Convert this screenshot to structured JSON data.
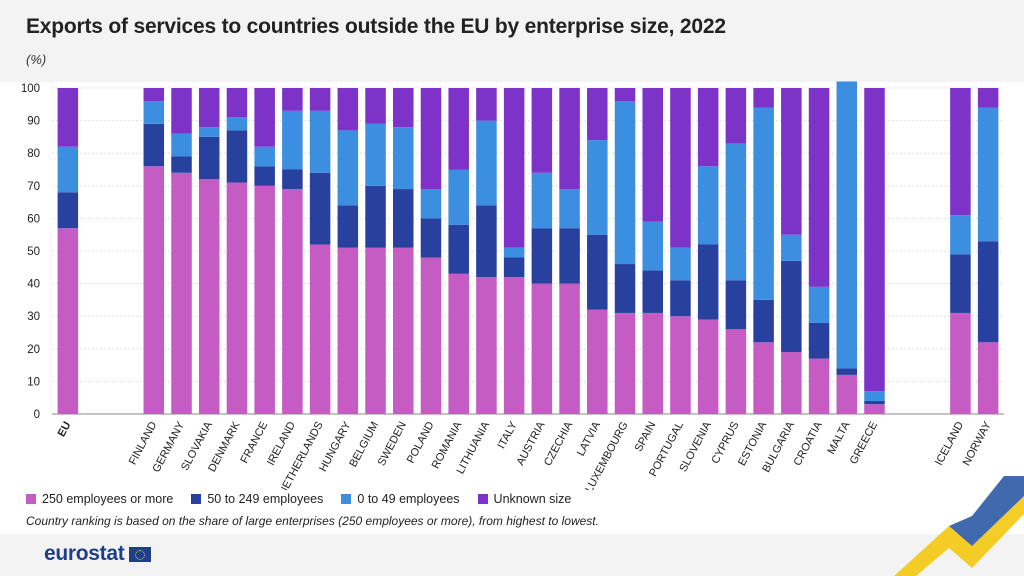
{
  "title": "Exports of services to countries outside the EU by enterprise size, 2022",
  "unit": "(%)",
  "note": "Country ranking is based on the share of large enterprises (250 employees or more), from highest to lowest.",
  "logo": "eurostat",
  "legend": [
    {
      "label": "250 employees or more",
      "color": "#c45cc4"
    },
    {
      "label": "50 to 249 employees",
      "color": "#28409e"
    },
    {
      "label": "0 to 49 employees",
      "color": "#3c8ee0"
    },
    {
      "label": "Unknown size",
      "color": "#7d33c8"
    }
  ],
  "chart_data": {
    "type": "bar",
    "stacked": true,
    "title": "Exports of services to countries outside the EU by enterprise size, 2022",
    "ylabel": "(%)",
    "ylim": [
      0,
      100
    ],
    "yticks": [
      0,
      10,
      20,
      30,
      40,
      50,
      60,
      70,
      80,
      90,
      100
    ],
    "grid": true,
    "legend_position": "bottom",
    "categories": [
      "EU",
      "FINLAND",
      "GERMANY",
      "SLOVAKIA",
      "DENMARK",
      "FRANCE",
      "IRELAND",
      "NETHERLANDS",
      "HUNGARY",
      "BELGIUM",
      "SWEDEN",
      "POLAND",
      "ROMANIA",
      "LITHUANIA",
      "ITALY",
      "AUSTRIA",
      "CZECHIA",
      "LATVIA",
      "LUXEMBOURG",
      "SPAIN",
      "PORTUGAL",
      "SLOVENIA",
      "CYPRUS",
      "ESTONIA",
      "BULGARIA",
      "CROATIA",
      "MALTA",
      "GREECE",
      "ICELAND",
      "NORWAY"
    ],
    "groups": [
      [
        "EU"
      ],
      [
        "FINLAND",
        "GERMANY",
        "SLOVAKIA",
        "DENMARK",
        "FRANCE",
        "IRELAND",
        "NETHERLANDS",
        "HUNGARY",
        "BELGIUM",
        "SWEDEN",
        "POLAND",
        "ROMANIA",
        "LITHUANIA",
        "ITALY",
        "AUSTRIA",
        "CZECHIA",
        "LATVIA",
        "LUXEMBOURG",
        "SPAIN",
        "PORTUGAL",
        "SLOVENIA",
        "CYPRUS",
        "ESTONIA",
        "BULGARIA",
        "CROATIA",
        "MALTA",
        "GREECE"
      ],
      [
        "ICELAND",
        "NORWAY"
      ]
    ],
    "series": [
      {
        "name": "250 employees or more",
        "color": "#c45cc4",
        "values": [
          57,
          76,
          74,
          72,
          71,
          70,
          69,
          52,
          51,
          51,
          51,
          48,
          43,
          42,
          42,
          40,
          40,
          32,
          31,
          31,
          30,
          29,
          26,
          22,
          19,
          17,
          12,
          3,
          31,
          22
        ]
      },
      {
        "name": "50 to 249 employees",
        "color": "#28409e",
        "values": [
          11,
          13,
          5,
          13,
          16,
          6,
          6,
          22,
          13,
          19,
          18,
          12,
          15,
          22,
          6,
          17,
          17,
          23,
          15,
          13,
          11,
          23,
          15,
          13,
          28,
          11,
          2,
          1,
          18,
          31
        ]
      },
      {
        "name": "0 to 49 employees",
        "color": "#3c8ee0",
        "values": [
          14,
          7,
          7,
          3,
          4,
          6,
          18,
          19,
          23,
          19,
          19,
          9,
          17,
          26,
          3,
          17,
          12,
          29,
          50,
          15,
          10,
          24,
          42,
          59,
          8,
          11,
          88,
          3,
          12,
          41
        ]
      },
      {
        "name": "Unknown size",
        "color": "#7d33c8",
        "values": [
          18,
          4,
          14,
          12,
          9,
          18,
          7,
          7,
          13,
          11,
          12,
          31,
          25,
          10,
          49,
          26,
          31,
          16,
          4,
          41,
          49,
          24,
          17,
          6,
          45,
          61,
          0,
          93,
          39,
          6
        ]
      }
    ]
  }
}
